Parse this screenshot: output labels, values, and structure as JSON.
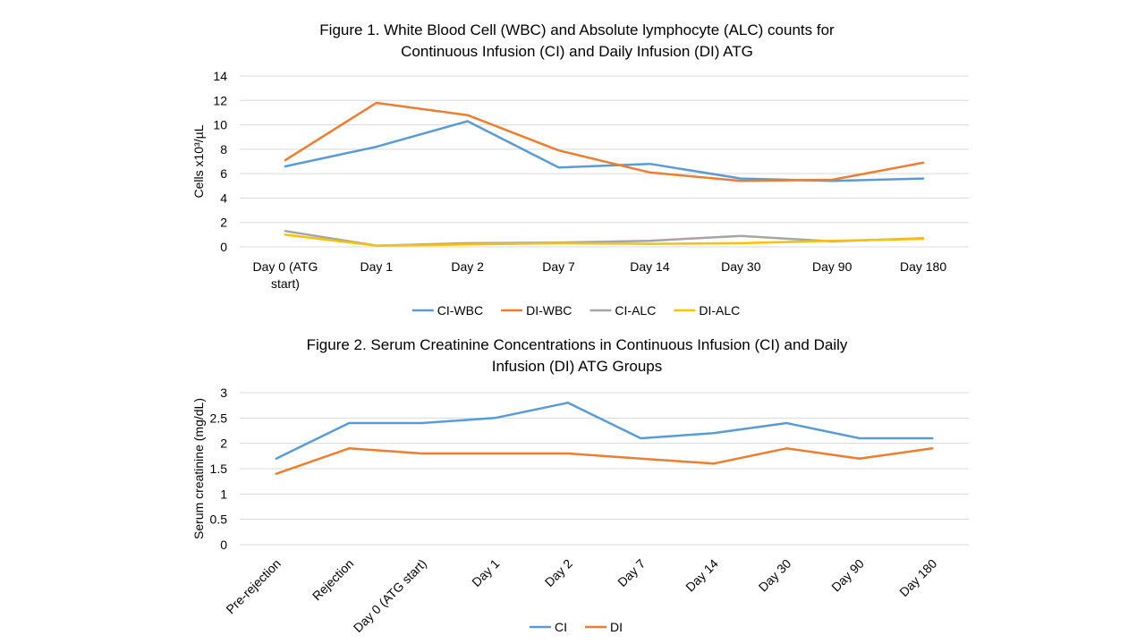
{
  "chart_data": [
    {
      "type": "line",
      "title": [
        "Figure 1. White Blood Cell (WBC) and Absolute lymphocyte (ALC) counts for",
        "Continuous Infusion (CI) and Daily Infusion (DI) ATG"
      ],
      "xlabel": "",
      "ylabel": "Cells x10³/µL",
      "ylim": [
        0,
        14
      ],
      "ystep": 2,
      "yticks": [
        "0",
        "2",
        "4",
        "6",
        "8",
        "10",
        "12",
        "14"
      ],
      "grid": true,
      "legend_position": "bottom",
      "categories": [
        [
          "Day 0 (ATG",
          "start)"
        ],
        [
          "Day 1"
        ],
        [
          "Day 2"
        ],
        [
          "Day 7"
        ],
        [
          "Day 14"
        ],
        [
          "Day 30"
        ],
        [
          "Day 90"
        ],
        [
          "Day 180"
        ]
      ],
      "series": [
        {
          "name": "CI-WBC",
          "color": "#5b9bd5",
          "values": [
            6.6,
            8.2,
            10.3,
            6.5,
            6.8,
            5.6,
            5.4,
            5.6
          ]
        },
        {
          "name": "DI-WBC",
          "color": "#ed7d31",
          "values": [
            7.1,
            11.8,
            10.8,
            7.9,
            6.1,
            5.4,
            5.5,
            6.9
          ]
        },
        {
          "name": "CI-ALC",
          "color": "#a5a5a5",
          "values": [
            1.3,
            0.1,
            0.3,
            0.35,
            0.5,
            0.9,
            0.45,
            0.7
          ]
        },
        {
          "name": "DI-ALC",
          "color": "#ffc000",
          "values": [
            1.0,
            0.1,
            0.2,
            0.3,
            0.25,
            0.3,
            0.5,
            0.65
          ]
        }
      ]
    },
    {
      "type": "line",
      "title": [
        "Figure 2. Serum Creatinine Concentrations in Continuous Infusion (CI) and Daily",
        "Infusion (DI) ATG Groups"
      ],
      "xlabel": "",
      "ylabel": "Serum creatinine (mg/dL)",
      "ylim": [
        0,
        3
      ],
      "ystep": 0.5,
      "yticks": [
        "0",
        "0.5",
        "1",
        "1.5",
        "2",
        "2.5",
        "3"
      ],
      "grid": true,
      "legend_position": "bottom",
      "categories": [
        "Pre-rejection",
        "Rejection",
        "Day 0 (ATG start)",
        "Day 1",
        "Day 2",
        "Day 7",
        "Day 14",
        "Day 30",
        "Day 90",
        "Day 180"
      ],
      "series": [
        {
          "name": "CI",
          "color": "#5b9bd5",
          "values": [
            1.7,
            2.4,
            2.4,
            2.5,
            2.8,
            2.1,
            2.2,
            2.4,
            2.1,
            2.1
          ]
        },
        {
          "name": "DI",
          "color": "#ed7d31",
          "values": [
            1.4,
            1.9,
            1.8,
            1.8,
            1.8,
            1.7,
            1.6,
            1.9,
            1.7,
            1.9
          ]
        }
      ]
    }
  ]
}
